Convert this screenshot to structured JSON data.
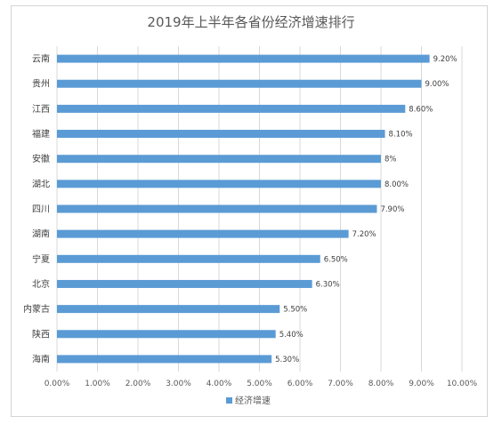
{
  "chart_data": {
    "type": "bar",
    "orientation": "horizontal",
    "title": "2019年上半年各省份经济增速排行",
    "xlabel": "",
    "ylabel": "",
    "categories": [
      "云南",
      "贵州",
      "江西",
      "福建",
      "安徽",
      "湖北",
      "四川",
      "湖南",
      "宁夏",
      "北京",
      "内蒙古",
      "陕西",
      "海南"
    ],
    "series": [
      {
        "name": "经济增速",
        "values": [
          9.2,
          9.0,
          8.6,
          8.1,
          8.0,
          8.0,
          7.9,
          7.2,
          6.5,
          6.3,
          5.5,
          5.4,
          5.3
        ],
        "data_labels": [
          "9.20%",
          "9.00%",
          "8.60%",
          "8.10%",
          "8%",
          "8.00%",
          "7.90%",
          "7.20%",
          "6.50%",
          "6.30%",
          "5.50%",
          "5.40%",
          "5.30%"
        ],
        "color": "#5b9bd5"
      }
    ],
    "xlim": [
      0,
      10
    ],
    "x_ticks": [
      0,
      1,
      2,
      3,
      4,
      5,
      6,
      7,
      8,
      9,
      10
    ],
    "x_tick_labels": [
      "0.00%",
      "1.00%",
      "2.00%",
      "3.00%",
      "4.00%",
      "5.00%",
      "6.00%",
      "7.00%",
      "8.00%",
      "9.00%",
      "10.00%"
    ],
    "grid": "vertical",
    "legend": "bottom"
  }
}
